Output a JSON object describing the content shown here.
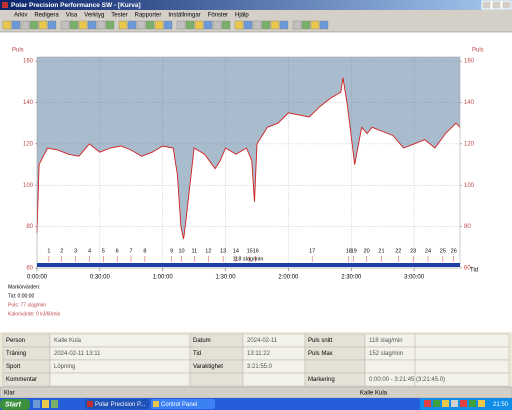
{
  "window": {
    "title": "Polar Precision Performance SW - [Kurva]",
    "menu": [
      "Arkiv",
      "Redigera",
      "Visa",
      "Verktyg",
      "Tester",
      "Rapporter",
      "Inställningar",
      "Fönster",
      "Hjälp"
    ]
  },
  "chart_data": {
    "type": "line",
    "y_label": "Puls",
    "y2_label": "Puls",
    "x_label": "Tid",
    "color": "#d02020",
    "fill_color": "#a9bccd",
    "grid": true,
    "x": [
      0,
      60,
      300,
      600,
      900,
      1200,
      1500,
      1800,
      2100,
      2400,
      2700,
      3000,
      3300,
      3600,
      3900,
      4020,
      4120,
      4200,
      4260,
      4380,
      4500,
      4800,
      5100,
      5250,
      5400,
      5700,
      6000,
      6150,
      6230,
      6300,
      6600,
      6900,
      7200,
      7500,
      7800,
      8100,
      8400,
      8700,
      8760,
      8880,
      8940,
      9100,
      9300,
      9450,
      9600,
      9900,
      10200,
      10500,
      10800,
      11100,
      11400,
      11700,
      12000,
      12115
    ],
    "values": [
      77,
      110,
      118,
      117,
      115,
      114,
      120,
      116,
      118,
      119,
      117,
      114,
      116,
      119,
      118,
      105,
      80,
      74,
      82,
      100,
      118,
      115,
      108,
      112,
      118,
      115,
      118,
      112,
      92,
      120,
      128,
      130,
      135,
      134,
      133,
      138,
      142,
      145,
      152,
      140,
      132,
      110,
      128,
      125,
      128,
      126,
      124,
      118,
      120,
      122,
      118,
      125,
      130,
      128
    ],
    "xlim": [
      0,
      12115
    ],
    "xticks": [
      {
        "value": 0,
        "label": "0:00:00"
      },
      {
        "value": 1800,
        "label": "0:30:00"
      },
      {
        "value": 3600,
        "label": "1:00:00"
      },
      {
        "value": 5400,
        "label": "1:30:00"
      },
      {
        "value": 7200,
        "label": "2:00:00"
      },
      {
        "value": 9000,
        "label": "2:30:00"
      },
      {
        "value": 10800,
        "label": "3:00:00"
      }
    ],
    "ylim": [
      60,
      162
    ],
    "yticks": [
      60,
      80,
      100,
      120,
      140,
      160
    ],
    "y2lim": [
      60,
      162
    ],
    "y2ticks": [
      60,
      80,
      100,
      120,
      140,
      160
    ],
    "average_label": "118 slag/min",
    "laps": {
      "labels": [
        "1",
        "2",
        "3",
        "4",
        "5",
        "6",
        "7",
        "8",
        "9",
        "10",
        "11",
        "12",
        "13",
        "14",
        "15",
        "16",
        "17",
        "18",
        "19",
        "20",
        "21",
        "22",
        "23",
        "24",
        "25",
        "26"
      ],
      "x": [
        340,
        709,
        1106,
        1503,
        1900,
        2296,
        2693,
        3090,
        3856,
        4139,
        4508,
        4905,
        5330,
        5698,
        6095,
        6265,
        7881,
        8930,
        9072,
        9441,
        9866,
        10348,
        10773,
        11198,
        11624,
        11935
      ]
    }
  },
  "cursor": {
    "heading": "Markörvärden:",
    "lines": [
      "Tid: 0:00:00",
      "Puls: 77 slag/min",
      "Kalorivärde: 0 kJ/60min"
    ]
  },
  "table": {
    "fields": [
      {
        "label": "Person",
        "value": "Kalle Kula"
      },
      {
        "label": "Datum",
        "value": "2024-02-11"
      },
      {
        "label": "Puls snitt",
        "value": "118 slag/min"
      },
      {
        "label": "Träning",
        "value": "2024-02-11 13:11"
      },
      {
        "label": "Tid",
        "value": "13:11:22"
      },
      {
        "label": "Puls Max",
        "value": "152 slag/min"
      },
      {
        "label": "Sport",
        "value": "Löpning"
      },
      {
        "label": "Varaktighet",
        "value": "3:21:55.0"
      },
      {
        "label": "Kommentar"
      },
      {
        "label": "Markering",
        "value": "0:00:00 - 3:21:45 (3:21:45.0)"
      }
    ]
  },
  "status": {
    "left": "Klar",
    "right": "Kalle Kula"
  },
  "taskbar": {
    "start": "Start",
    "tasks": [
      "Polar Precision P...",
      "Control Panel"
    ],
    "clock": "21:50"
  }
}
